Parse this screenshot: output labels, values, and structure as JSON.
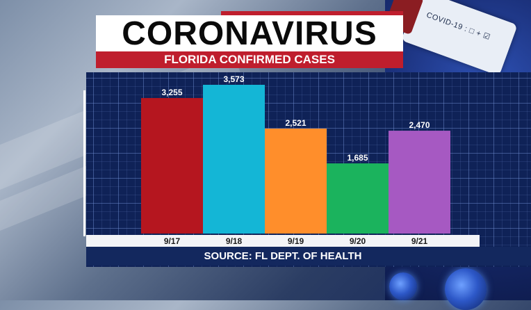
{
  "header": {
    "title": "CORONAVIRUS",
    "subtitle": "FLORIDA CONFIRMED CASES"
  },
  "decor": {
    "test_tube_label": "COVID-19 : □ + ☑"
  },
  "footer": {
    "source": "SOURCE: FL DEPT. OF HEALTH"
  },
  "colors": {
    "bar_917": "#b5161f",
    "bar_918": "#14b6d6",
    "bar_919": "#ff8e2b",
    "bar_920": "#1bb35d",
    "bar_921": "#a659c2",
    "title_red": "#bf1e2d",
    "panel_navy": "#0f2257"
  },
  "chart_data": {
    "type": "bar",
    "title": "CORONAVIRUS",
    "subtitle": "FLORIDA CONFIRMED CASES",
    "categories": [
      "9/17",
      "9/18",
      "9/19",
      "9/20",
      "9/21"
    ],
    "values": [
      3255,
      3573,
      2521,
      1685,
      2470
    ],
    "value_labels": [
      "3,255",
      "3,573",
      "2,521",
      "1,685",
      "2,470"
    ],
    "bar_colors": [
      "#b5161f",
      "#14b6d6",
      "#ff8e2b",
      "#1bb35d",
      "#a659c2"
    ],
    "xlabel": "",
    "ylabel": "",
    "ylim": [
      0,
      3573
    ],
    "grid": true,
    "legend": "none",
    "source": "SOURCE: FL DEPT. OF HEALTH"
  }
}
